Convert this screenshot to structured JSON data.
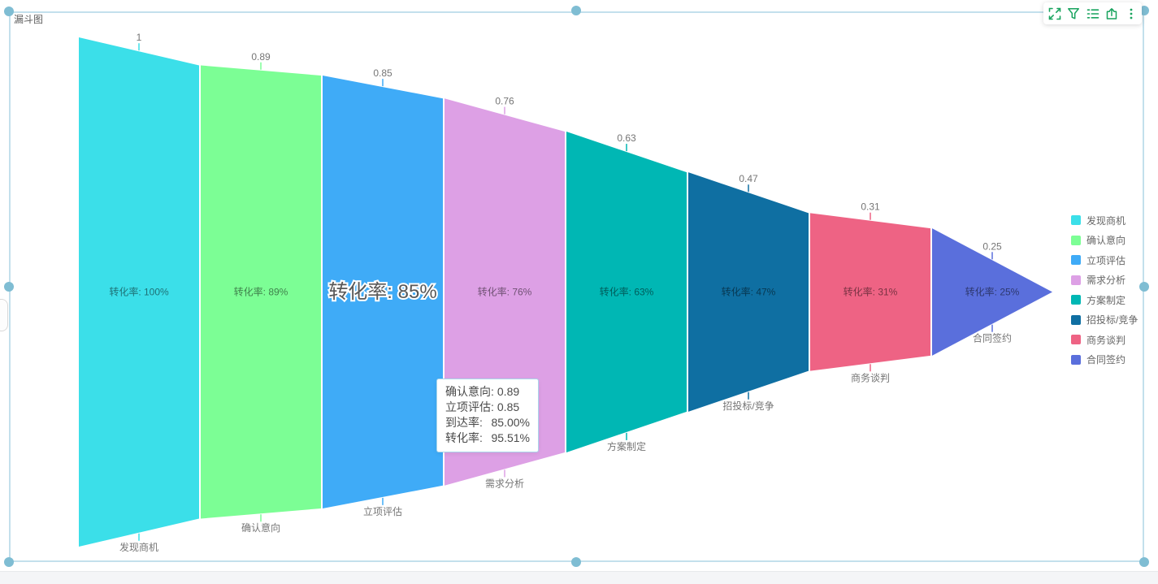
{
  "widget": {
    "title": "漏斗图"
  },
  "toolbar": {
    "icon_color": "#18a35e",
    "buttons": [
      {
        "name": "fullscreen"
      },
      {
        "name": "filter"
      },
      {
        "name": "legend-list"
      },
      {
        "name": "export"
      },
      {
        "name": "more"
      }
    ]
  },
  "chart_data": {
    "type": "funnel",
    "title": "漏斗图",
    "orientation": "horizontal",
    "legend_position": "right",
    "value_range": [
      0,
      1
    ],
    "stages": [
      {
        "name": "发现商机",
        "value": 1,
        "value_label": "1",
        "conversion_label": "转化率: 100%",
        "color": "#3bdfe9",
        "highlighted": false
      },
      {
        "name": "确认意向",
        "value": 0.89,
        "value_label": "0.89",
        "conversion_label": "转化率: 89%",
        "color": "#7cfe95",
        "highlighted": false
      },
      {
        "name": "立项评估",
        "value": 0.85,
        "value_label": "0.85",
        "conversion_label": "转化率: 85%",
        "color": "#3fabf7",
        "highlighted": true
      },
      {
        "name": "需求分析",
        "value": 0.76,
        "value_label": "0.76",
        "conversion_label": "转化率: 76%",
        "color": "#dda0e5",
        "highlighted": false
      },
      {
        "name": "方案制定",
        "value": 0.63,
        "value_label": "0.63",
        "conversion_label": "转化率: 63%",
        "color": "#00b7b4",
        "highlighted": false
      },
      {
        "name": "招投标/竞争",
        "value": 0.47,
        "value_label": "0.47",
        "conversion_label": "转化率: 47%",
        "color": "#0f6fa2",
        "highlighted": false
      },
      {
        "name": "商务谈判",
        "value": 0.31,
        "value_label": "0.31",
        "conversion_label": "转化率: 31%",
        "color": "#ee6384",
        "highlighted": false
      },
      {
        "name": "合同签约",
        "value": 0.25,
        "value_label": "0.25",
        "conversion_label": "转化率: 25%",
        "color": "#5a6fdc",
        "highlighted": false
      }
    ]
  },
  "tooltip": {
    "rows": [
      {
        "label": "确认意向:",
        "value": "0.89",
        "value_align": "left"
      },
      {
        "label": "立项评估:",
        "value": "0.85",
        "value_align": "left"
      },
      {
        "label": "到达率:",
        "value": "85.00%",
        "value_align": "right"
      },
      {
        "label": "转化率:",
        "value": "95.51%",
        "value_align": "right"
      }
    ]
  }
}
